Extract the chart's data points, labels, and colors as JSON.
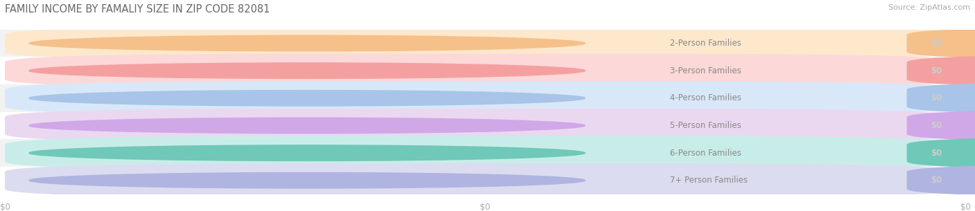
{
  "title": "FAMILY INCOME BY FAMALIY SIZE IN ZIP CODE 82081",
  "source": "Source: ZipAtlas.com",
  "categories": [
    "2-Person Families",
    "3-Person Families",
    "4-Person Families",
    "5-Person Families",
    "6-Person Families",
    "7+ Person Families"
  ],
  "values": [
    0,
    0,
    0,
    0,
    0,
    0
  ],
  "bar_light_colors": [
    "#fde8cc",
    "#fdd8d8",
    "#d8e8f8",
    "#ead8f0",
    "#c8ede8",
    "#dcdcf0"
  ],
  "bar_dark_colors": [
    "#f5c08a",
    "#f5a0a0",
    "#a8c4e8",
    "#d0a8e8",
    "#70c8b8",
    "#b0b4e0"
  ],
  "bg_row_even": "#f2f2f2",
  "bg_row_odd": "#ffffff",
  "label_color": "#888888",
  "value_label_color": "#cccccc",
  "title_color": "#666666",
  "source_color": "#aaaaaa",
  "grid_color": "#dddddd",
  "tick_label_color": "#aaaaaa",
  "background_color": "#ffffff",
  "figsize": [
    14.06,
    3.05
  ],
  "dpi": 100
}
